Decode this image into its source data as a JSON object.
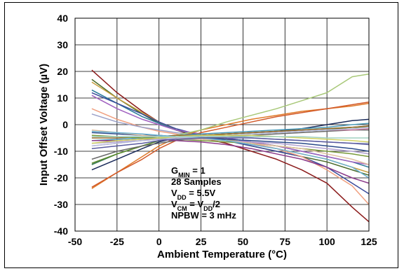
{
  "chart_data": {
    "type": "line",
    "xlabel": "Ambient Temperature (°C)",
    "ylabel": "Input Offset Voltage (µV)",
    "xlim": [
      -50,
      125
    ],
    "ylim": [
      -40,
      40
    ],
    "x_ticks": [
      "-50",
      "-25",
      "0",
      "25",
      "50",
      "75",
      "100",
      "125"
    ],
    "y_ticks": [
      "40",
      "30",
      "20",
      "10",
      "0",
      "-10",
      "-20",
      "-30",
      "-40"
    ],
    "grid": true,
    "annotation": [
      {
        "main": "G",
        "sub": "MIN",
        "rest": " = 1"
      },
      {
        "main": "28 Samples"
      },
      {
        "main": "V",
        "sub": "DD",
        "rest": " = 5.5V"
      },
      {
        "main": "V",
        "sub": "CM",
        "rest": " = V",
        "sub2": "DD",
        "rest2": "/2"
      },
      {
        "main": "NPBW = 3 mHz"
      }
    ],
    "x": [
      -40,
      -25,
      -10,
      0,
      10,
      25,
      40,
      55,
      70,
      85,
      100,
      115,
      125
    ],
    "series": [
      {
        "color": "#8b1a1a",
        "values": [
          20.5,
          12,
          5,
          1,
          -2,
          -5,
          -7,
          -10,
          -13,
          -17,
          -22,
          -31,
          -36.5
        ]
      },
      {
        "color": "#4a6b2a",
        "values": [
          17,
          10,
          4,
          0.5,
          -2,
          -4,
          -6,
          -8,
          -10,
          -12,
          -14,
          -17,
          -19
        ]
      },
      {
        "color": "#c8a040",
        "values": [
          16,
          10,
          4.5,
          1,
          -2,
          -4,
          -5.5,
          -7,
          -9,
          -11,
          -13,
          -16,
          -18
        ]
      },
      {
        "color": "#2a7a9a",
        "values": [
          13,
          8,
          3,
          0.5,
          -2,
          -4,
          -5,
          -6.5,
          -8,
          -10,
          -12,
          -14,
          -16
        ]
      },
      {
        "color": "#3a4a9a",
        "values": [
          12,
          8,
          4,
          1,
          -1.5,
          -4,
          -6,
          -8,
          -10,
          -12,
          -16,
          -22,
          -26
        ]
      },
      {
        "color": "#f0a080",
        "values": [
          6,
          2,
          -1,
          -2.5,
          -3.5,
          -5,
          -6,
          -7,
          -9,
          -12,
          -17,
          -23,
          -30
        ]
      },
      {
        "color": "#a060c0",
        "values": [
          11,
          6,
          2,
          0,
          -2,
          -3.5,
          -5,
          -6.5,
          -8,
          -10,
          -12,
          -14,
          -15
        ]
      },
      {
        "color": "#9aa0c8",
        "values": [
          4,
          1,
          -1,
          -2,
          -3,
          -4,
          -4.5,
          -5,
          -5.5,
          -6,
          -6.5,
          -7,
          -7
        ]
      },
      {
        "color": "#e07a2a",
        "values": [
          -24,
          -18,
          -12,
          -8,
          -5,
          -2,
          0,
          2,
          3.5,
          5,
          6,
          7,
          8
        ]
      },
      {
        "color": "#d25a2a",
        "values": [
          -23.5,
          -18,
          -13,
          -9,
          -6,
          -3,
          -1,
          1,
          3,
          4.5,
          6,
          7.5,
          8.5
        ]
      },
      {
        "color": "#a8c878",
        "values": [
          -15,
          -11,
          -8,
          -6,
          -4,
          -2,
          1,
          3.5,
          6,
          9,
          12,
          18,
          19
        ]
      },
      {
        "color": "#1a2a5a",
        "values": [
          -17,
          -13,
          -9,
          -6.5,
          -5,
          -4,
          -3.5,
          -3,
          -2.5,
          -1.5,
          0,
          1.5,
          2
        ]
      },
      {
        "color": "#3a7a5a",
        "values": [
          -15,
          -11,
          -8,
          -6,
          -5,
          -4,
          -3.5,
          -3,
          -2.5,
          -2,
          -1.5,
          -1,
          -0.5
        ]
      },
      {
        "color": "#5a8a2a",
        "values": [
          -14.5,
          -11,
          -8,
          -6,
          -5,
          -4.5,
          -4,
          -3.5,
          -3,
          -2.5,
          -2,
          -1,
          -1
        ]
      },
      {
        "color": "#6a6a6a",
        "values": [
          -13,
          -10,
          -8,
          -7,
          -6,
          -5,
          -4.5,
          -4,
          -3.5,
          -3,
          -2.5,
          -2,
          -2
        ]
      },
      {
        "color": "#c87aa0",
        "values": [
          -8,
          -7,
          -6,
          -5.5,
          -5,
          -4.5,
          -4,
          -3.5,
          -3,
          -2.5,
          -2,
          -2,
          -1.5
        ]
      },
      {
        "color": "#4a9ab8",
        "values": [
          -6,
          -5.5,
          -5,
          -4.5,
          -4,
          -3.5,
          -3,
          -2.5,
          -2,
          -1.5,
          -1,
          0,
          0.5
        ]
      },
      {
        "color": "#9a6a2a",
        "values": [
          -5,
          -5,
          -4.5,
          -4.5,
          -4,
          -4,
          -3.5,
          -3,
          -2.5,
          -2,
          -1.5,
          -1,
          -0.5
        ]
      },
      {
        "color": "#2a4a8a",
        "values": [
          -3,
          -3.5,
          -4,
          -4,
          -4.5,
          -5,
          -5.5,
          -6,
          -6.5,
          -7,
          -8,
          -9,
          -10
        ]
      },
      {
        "color": "#7a9a3a",
        "values": [
          -4,
          -4.5,
          -5,
          -5,
          -5.5,
          -6,
          -6.5,
          -7,
          -8,
          -9,
          -10,
          -11,
          -12
        ]
      },
      {
        "color": "#b0a0d0",
        "values": [
          -7,
          -6.5,
          -6,
          -5.5,
          -5.5,
          -5.5,
          -6,
          -6.5,
          -7,
          -8,
          -9,
          -10,
          -11
        ]
      },
      {
        "color": "#e0c0a0",
        "values": [
          -2,
          -3,
          -4,
          -4.5,
          -5,
          -5.5,
          -6,
          -7,
          -8,
          -9,
          -11,
          -13,
          -15
        ]
      },
      {
        "color": "#6ab0d0",
        "values": [
          -2.5,
          -3,
          -3.5,
          -4,
          -4.5,
          -5,
          -6,
          -7.5,
          -9,
          -11,
          -13,
          -16,
          -20
        ]
      },
      {
        "color": "#8a3a8a",
        "values": [
          -6,
          -6,
          -5.5,
          -5.5,
          -6,
          -6.5,
          -7.5,
          -9,
          -11,
          -13,
          -16,
          -20,
          -22
        ]
      },
      {
        "color": "#b8c0e0",
        "values": [
          -8,
          -7,
          -6,
          -5.5,
          -5,
          -4.5,
          -4,
          -3.5,
          -3,
          -2.5,
          -2,
          -1.5,
          -1
        ]
      },
      {
        "color": "#d0d060",
        "values": [
          -7,
          -6,
          -5.5,
          -5,
          -4.5,
          -4,
          -4,
          -4,
          -4.5,
          -5,
          -5.5,
          -6,
          -6.5
        ]
      },
      {
        "color": "#5a5aa0",
        "values": [
          -9,
          -8,
          -7,
          -6,
          -5.5,
          -5,
          -5,
          -5,
          -5.5,
          -6,
          -6.5,
          -7,
          -7.5
        ]
      },
      {
        "color": "#a0d0c0",
        "values": [
          -4.5,
          -4.5,
          -4.5,
          -4.5,
          -4.5,
          -4.5,
          -4.5,
          -4.5,
          -4.5,
          -4.5,
          -5,
          -5,
          -5
        ]
      }
    ]
  }
}
